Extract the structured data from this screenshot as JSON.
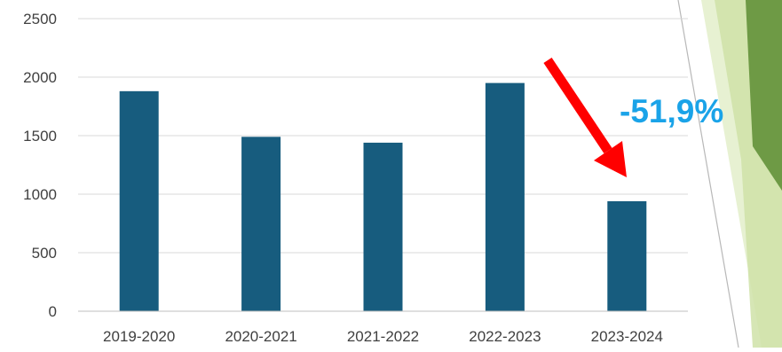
{
  "chart_data": {
    "type": "bar",
    "categories": [
      "2019-2020",
      "2020-2021",
      "2021-2022",
      "2022-2023",
      "2023-2024"
    ],
    "values": [
      1880,
      1490,
      1440,
      1950,
      940
    ],
    "ylim": [
      0,
      2500
    ],
    "yticks": [
      0,
      500,
      1000,
      1500,
      2000,
      2500
    ],
    "grid": true,
    "legend": "none",
    "bar_color": "#175c7e",
    "annotation": {
      "text": "-51,9%",
      "color": "#1aa3e8",
      "arrow_color": "#ff0000",
      "target_category": "2023-2024"
    }
  },
  "decoration": {
    "green_dark": "#6e9a45",
    "green_light": "#cfe2a8",
    "green_pale": "#e7f1d2"
  }
}
